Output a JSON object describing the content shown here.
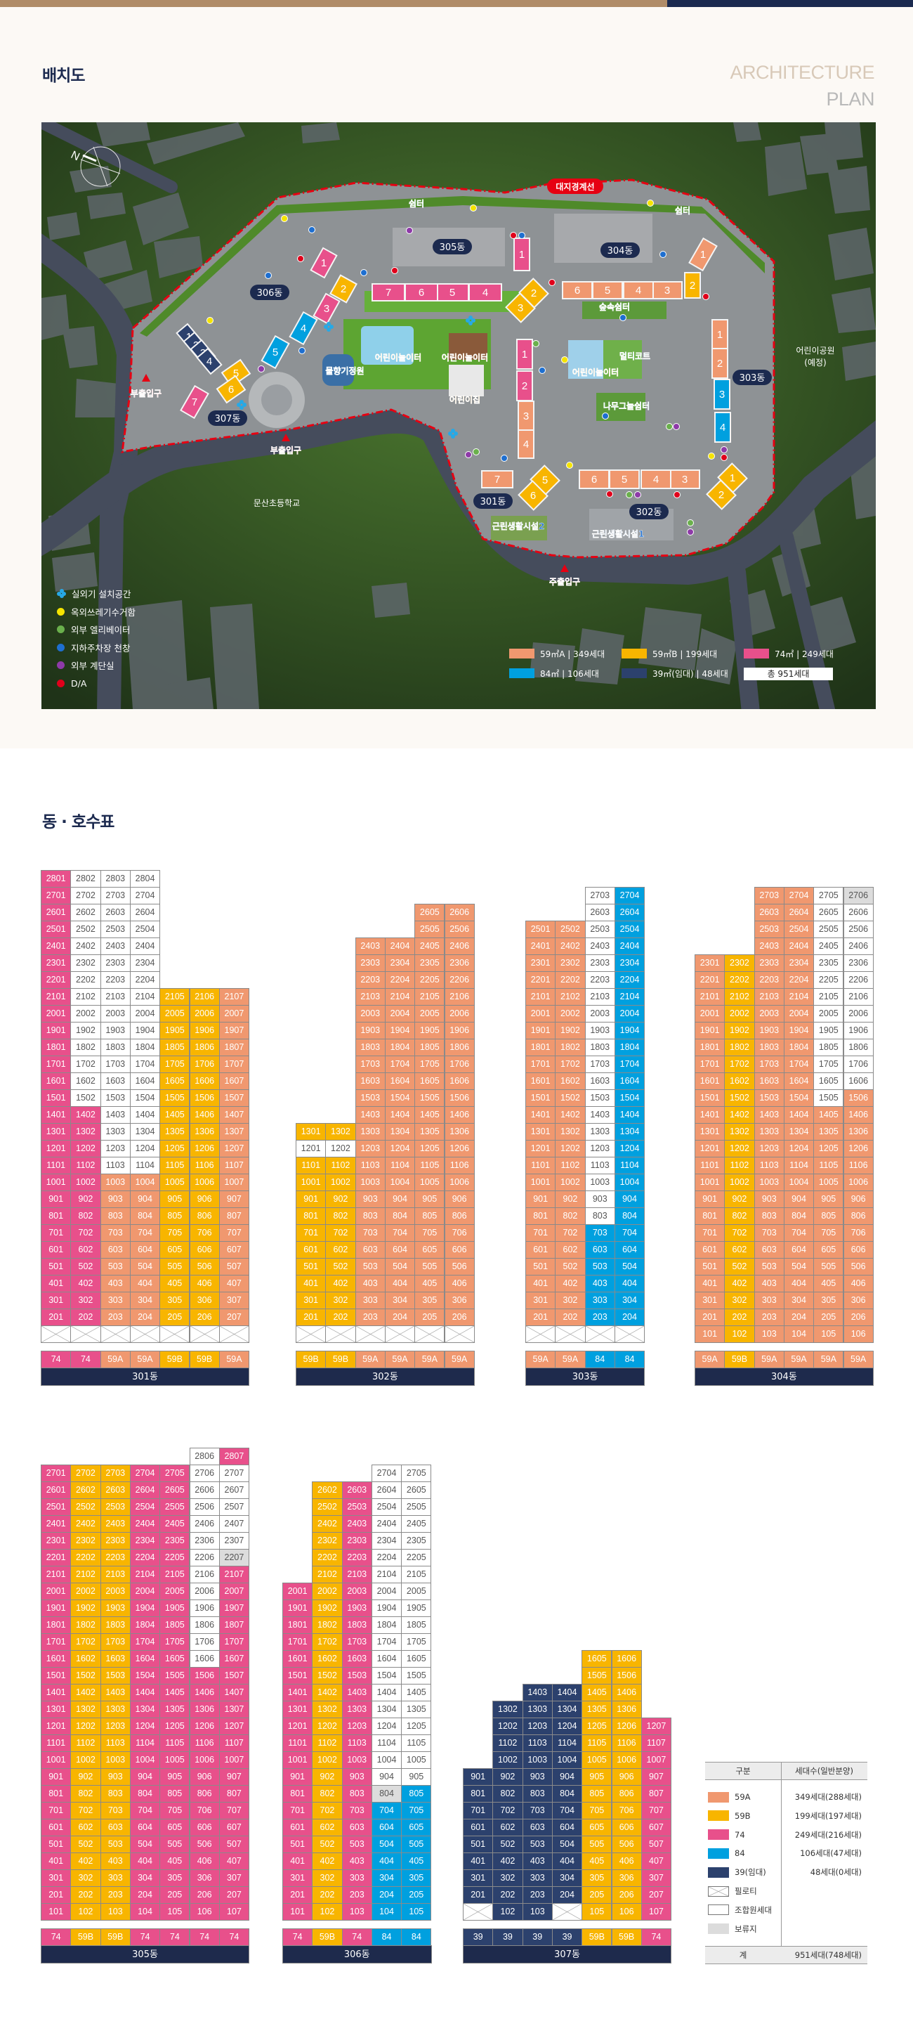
{
  "header": {
    "title": "배치도",
    "en_title_line1": "ARCHITECTURE",
    "en_title_line2": "PLAN"
  },
  "colors": {
    "59A": "#f0986f",
    "59B": "#f8b500",
    "74": "#e8508b",
    "84": "#00a0df",
    "39": "#2c416d",
    "navy": "#1c2a4f",
    "boundary": "#e60012"
  },
  "map": {
    "boundary_label": "대지경계선",
    "building_labels": {
      "b301": "301동",
      "b302": "302동",
      "b303": "303동",
      "b304": "304동",
      "b305": "305동",
      "b306": "306동",
      "b307": "307동"
    },
    "blocks": {
      "b301": [
        {
          "no": "1",
          "type": "74"
        },
        {
          "no": "2",
          "type": "74"
        },
        {
          "no": "3",
          "type": "59A"
        },
        {
          "no": "4",
          "type": "59A"
        },
        {
          "no": "5",
          "type": "59B"
        },
        {
          "no": "6",
          "type": "59B"
        },
        {
          "no": "7",
          "type": "59A"
        }
      ],
      "b302": [
        {
          "no": "1",
          "type": "59B"
        },
        {
          "no": "2",
          "type": "59B"
        },
        {
          "no": "3",
          "type": "59A"
        },
        {
          "no": "4",
          "type": "59A"
        },
        {
          "no": "5",
          "type": "59A"
        },
        {
          "no": "6",
          "type": "59A"
        }
      ],
      "b303": [
        {
          "no": "1",
          "type": "59A"
        },
        {
          "no": "2",
          "type": "59A"
        },
        {
          "no": "3",
          "type": "84"
        },
        {
          "no": "4",
          "type": "84"
        }
      ],
      "b304": [
        {
          "no": "1",
          "type": "59A"
        },
        {
          "no": "2",
          "type": "59B"
        },
        {
          "no": "3",
          "type": "59A"
        },
        {
          "no": "4",
          "type": "59A"
        },
        {
          "no": "5",
          "type": "59A"
        },
        {
          "no": "6",
          "type": "59A"
        }
      ],
      "b305": [
        {
          "no": "1",
          "type": "74"
        },
        {
          "no": "2",
          "type": "59B"
        },
        {
          "no": "3",
          "type": "59B"
        },
        {
          "no": "4",
          "type": "74"
        },
        {
          "no": "5",
          "type": "74"
        },
        {
          "no": "6",
          "type": "74"
        },
        {
          "no": "7",
          "type": "74"
        }
      ],
      "b306": [
        {
          "no": "1",
          "type": "74"
        },
        {
          "no": "2",
          "type": "59B"
        },
        {
          "no": "3",
          "type": "74"
        },
        {
          "no": "4",
          "type": "84"
        },
        {
          "no": "5",
          "type": "84"
        }
      ],
      "b307": [
        {
          "no": "1",
          "type": "39"
        },
        {
          "no": "2",
          "type": "39"
        },
        {
          "no": "3",
          "type": "39"
        },
        {
          "no": "4",
          "type": "39"
        },
        {
          "no": "5",
          "type": "59B"
        },
        {
          "no": "6",
          "type": "59B"
        },
        {
          "no": "7",
          "type": "74"
        }
      ]
    },
    "facilities": {
      "shelter1": "쉼터",
      "shelter2": "쉼터",
      "forest_shelter": "숲속쉼터",
      "multicourt": "멀티코트",
      "playground1": "어린이놀이터",
      "playground2": "어린이놀이터",
      "playground3": "어린이놀이터",
      "daycare": "어린이집",
      "water_garden": "물향기정원",
      "tree_shade": "나무그늘쉼터",
      "retail1": "근린생활시설1",
      "retail2": "근린생활시설2"
    },
    "entrances": {
      "sub1": "부출입구",
      "sub2": "부출입구",
      "main": "주출입구"
    },
    "surroundings": {
      "school": "문산초등학교",
      "park_line1": "어린이공원",
      "park_line2": "(예정)"
    },
    "icon_legend": [
      {
        "icon": "outdoor-unit-icon",
        "label": "실외기 설치공간",
        "color": "#27a9e6"
      },
      {
        "icon": "trash-bin-icon",
        "label": "옥외쓰레기수거함",
        "color": "#f5e400"
      },
      {
        "icon": "elevator-icon",
        "label": "외부 엘리베이터",
        "color": "#6ab04c"
      },
      {
        "icon": "skylight-icon",
        "label": "지하주차장 천창",
        "color": "#1e6fd0"
      },
      {
        "icon": "stair-icon",
        "label": "외부 계단실",
        "color": "#8e3aa8"
      },
      {
        "icon": "da-icon",
        "label": "D/A",
        "color": "#e0001b"
      }
    ],
    "area_legend": [
      {
        "label": "59㎡A | 349세대",
        "type": "59A"
      },
      {
        "label": "59㎡B | 199세대",
        "type": "59B"
      },
      {
        "label": "74㎡ | 249세대",
        "type": "74"
      },
      {
        "label": "84㎡ | 106세대",
        "type": "84"
      },
      {
        "label": "39㎡(임대) | 48세대",
        "type": "39"
      }
    ],
    "total": "총 951세대"
  },
  "unit_tables": {
    "title": "동 · 호수표",
    "buildings": [
      {
        "name": "301동",
        "types": [
          "74",
          "74",
          "59A",
          "59A",
          "59B",
          "59B",
          "59A"
        ],
        "columns": [
          {
            "line": 1,
            "segments": [
              [
                1,
                1,
                "piloti"
              ],
              [
                2,
                28,
                "74"
              ]
            ]
          },
          {
            "line": 2,
            "segments": [
              [
                1,
                1,
                "piloti"
              ],
              [
                2,
                14,
                "74"
              ],
              [
                15,
                28,
                "member"
              ]
            ]
          },
          {
            "line": 3,
            "segments": [
              [
                1,
                1,
                "piloti"
              ],
              [
                2,
                10,
                "59A"
              ],
              [
                11,
                28,
                "member"
              ]
            ]
          },
          {
            "line": 4,
            "segments": [
              [
                1,
                1,
                "piloti"
              ],
              [
                2,
                10,
                "59A"
              ],
              [
                11,
                28,
                "member"
              ]
            ]
          },
          {
            "line": 5,
            "segments": [
              [
                1,
                1,
                "piloti"
              ],
              [
                2,
                21,
                "59B"
              ]
            ]
          },
          {
            "line": 6,
            "segments": [
              [
                1,
                1,
                "piloti"
              ],
              [
                2,
                21,
                "59B"
              ]
            ]
          },
          {
            "line": 7,
            "segments": [
              [
                1,
                1,
                "piloti"
              ],
              [
                2,
                21,
                "59A"
              ]
            ]
          }
        ]
      },
      {
        "name": "302동",
        "types": [
          "59B",
          "59B",
          "59A",
          "59A",
          "59A",
          "59A"
        ],
        "columns": [
          {
            "line": 1,
            "segments": [
              [
                1,
                1,
                "piloti"
              ],
              [
                2,
                11,
                "59B"
              ],
              [
                12,
                12,
                "member"
              ],
              [
                13,
                13,
                "59B"
              ]
            ]
          },
          {
            "line": 2,
            "segments": [
              [
                1,
                1,
                "piloti"
              ],
              [
                2,
                11,
                "59B"
              ],
              [
                12,
                12,
                "member"
              ],
              [
                13,
                13,
                "59B"
              ]
            ]
          },
          {
            "line": 3,
            "segments": [
              [
                1,
                1,
                "piloti"
              ],
              [
                2,
                24,
                "59A"
              ]
            ]
          },
          {
            "line": 4,
            "segments": [
              [
                1,
                1,
                "piloti"
              ],
              [
                2,
                24,
                "59A"
              ]
            ]
          },
          {
            "line": 5,
            "segments": [
              [
                1,
                1,
                "piloti"
              ],
              [
                2,
                26,
                "59A"
              ]
            ]
          },
          {
            "line": 6,
            "segments": [
              [
                1,
                1,
                "piloti"
              ],
              [
                2,
                26,
                "59A"
              ]
            ]
          }
        ]
      },
      {
        "name": "303동",
        "types": [
          "59A",
          "59A",
          "84",
          "84"
        ],
        "columns": [
          {
            "line": 1,
            "segments": [
              [
                1,
                1,
                "piloti"
              ],
              [
                2,
                25,
                "59A"
              ]
            ]
          },
          {
            "line": 2,
            "segments": [
              [
                1,
                1,
                "piloti"
              ],
              [
                2,
                25,
                "59A"
              ]
            ]
          },
          {
            "line": 3,
            "segments": [
              [
                1,
                1,
                "piloti"
              ],
              [
                2,
                7,
                "84"
              ],
              [
                8,
                27,
                "member"
              ]
            ]
          },
          {
            "line": 4,
            "segments": [
              [
                1,
                1,
                "piloti"
              ],
              [
                2,
                27,
                "84"
              ]
            ]
          }
        ]
      },
      {
        "name": "304동",
        "types": [
          "59A",
          "59B",
          "59A",
          "59A",
          "59A",
          "59A"
        ],
        "columns": [
          {
            "line": 1,
            "segments": [
              [
                1,
                23,
                "59A"
              ]
            ]
          },
          {
            "line": 2,
            "segments": [
              [
                1,
                23,
                "59B"
              ]
            ]
          },
          {
            "line": 3,
            "segments": [
              [
                1,
                27,
                "59A"
              ]
            ]
          },
          {
            "line": 4,
            "segments": [
              [
                1,
                27,
                "59A"
              ]
            ]
          },
          {
            "line": 5,
            "segments": [
              [
                1,
                14,
                "59A"
              ],
              [
                15,
                27,
                "member"
              ]
            ]
          },
          {
            "line": 6,
            "segments": [
              [
                1,
                15,
                "59A"
              ],
              [
                16,
                26,
                "member"
              ],
              [
                27,
                27,
                "reserve"
              ]
            ]
          }
        ]
      },
      {
        "name": "305동",
        "types": [
          "74",
          "59B",
          "59B",
          "74",
          "74",
          "74",
          "74"
        ],
        "columns": [
          {
            "line": 1,
            "segments": [
              [
                1,
                27,
                "74"
              ]
            ]
          },
          {
            "line": 2,
            "segments": [
              [
                1,
                27,
                "59B"
              ]
            ]
          },
          {
            "line": 3,
            "segments": [
              [
                1,
                27,
                "59B"
              ]
            ]
          },
          {
            "line": 4,
            "segments": [
              [
                1,
                27,
                "74"
              ]
            ]
          },
          {
            "line": 5,
            "segments": [
              [
                1,
                27,
                "74"
              ]
            ]
          },
          {
            "line": 6,
            "segments": [
              [
                1,
                15,
                "74"
              ],
              [
                16,
                28,
                "member"
              ]
            ]
          },
          {
            "line": 7,
            "segments": [
              [
                1,
                21,
                "74"
              ],
              [
                22,
                22,
                "reserve"
              ],
              [
                23,
                27,
                "member"
              ],
              [
                28,
                28,
                "74"
              ]
            ]
          }
        ]
      },
      {
        "name": "306동",
        "types": [
          "74",
          "59B",
          "74",
          "84",
          "84"
        ],
        "columns": [
          {
            "line": 1,
            "segments": [
              [
                1,
                20,
                "74"
              ]
            ]
          },
          {
            "line": 2,
            "segments": [
              [
                1,
                26,
                "59B"
              ]
            ]
          },
          {
            "line": 3,
            "segments": [
              [
                1,
                26,
                "74"
              ]
            ]
          },
          {
            "line": 4,
            "segments": [
              [
                1,
                7,
                "84"
              ],
              [
                8,
                8,
                "reserve"
              ],
              [
                9,
                27,
                "member"
              ]
            ]
          },
          {
            "line": 5,
            "segments": [
              [
                1,
                8,
                "84"
              ],
              [
                9,
                27,
                "member"
              ]
            ]
          }
        ]
      },
      {
        "name": "307동",
        "types": [
          "39",
          "39",
          "39",
          "39",
          "59B",
          "59B",
          "74"
        ],
        "columns": [
          {
            "line": 1,
            "segments": [
              [
                1,
                1,
                "piloti"
              ],
              [
                2,
                9,
                "39"
              ]
            ]
          },
          {
            "line": 2,
            "segments": [
              [
                1,
                13,
                "39"
              ]
            ]
          },
          {
            "line": 3,
            "segments": [
              [
                1,
                14,
                "39"
              ]
            ]
          },
          {
            "line": 4,
            "segments": [
              [
                1,
                1,
                "piloti"
              ],
              [
                2,
                14,
                "39"
              ]
            ]
          },
          {
            "line": 5,
            "segments": [
              [
                1,
                16,
                "59B"
              ]
            ]
          },
          {
            "line": 6,
            "segments": [
              [
                1,
                16,
                "59B"
              ]
            ]
          },
          {
            "line": 7,
            "segments": [
              [
                1,
                12,
                "74"
              ]
            ]
          }
        ]
      }
    ]
  },
  "summary_table": {
    "col_category": "구분",
    "col_households": "세대수(일반분양)",
    "rows": [
      {
        "type": "59A",
        "label": "59A",
        "value": "349세대(288세대)"
      },
      {
        "type": "59B",
        "label": "59B",
        "value": "199세대(197세대)"
      },
      {
        "type": "74",
        "label": "74",
        "value": "249세대(216세대)"
      },
      {
        "type": "84",
        "label": "84",
        "value": "106세대(47세대)"
      },
      {
        "type": "39",
        "label": "39(임대)",
        "value": "48세대(0세대)"
      },
      {
        "type": "piloti",
        "label": "필로티",
        "value": ""
      },
      {
        "type": "member",
        "label": "조합원세대",
        "value": ""
      },
      {
        "type": "reserve",
        "label": "보류지",
        "value": ""
      }
    ],
    "total_label": "계",
    "total_value": "951세대(748세대)"
  }
}
